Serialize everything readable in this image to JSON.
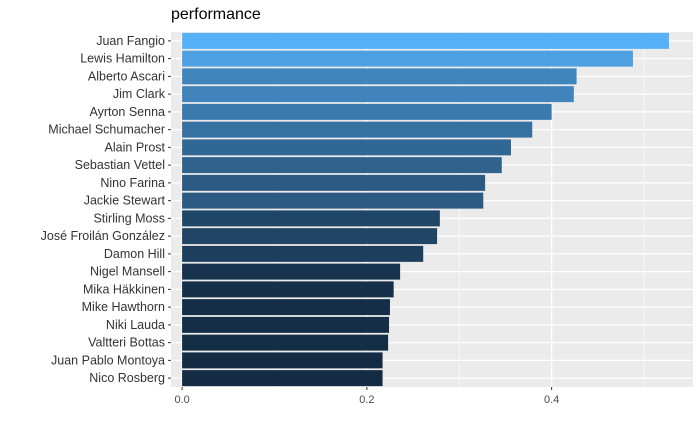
{
  "chart_data": {
    "type": "bar",
    "orientation": "horizontal",
    "title": "performance",
    "xlabel": "",
    "ylabel": "",
    "categories": [
      "Juan Fangio",
      "Lewis Hamilton",
      "Alberto Ascari",
      "Jim Clark",
      "Ayrton Senna",
      "Michael Schumacher",
      "Alain Prost",
      "Sebastian Vettel",
      "Nino Farina",
      "Jackie Stewart",
      "Stirling Moss",
      "José Froilán González",
      "Damon Hill",
      "Nigel Mansell",
      "Mika Häkkinen",
      "Mike Hawthorn",
      "Niki Lauda",
      "Valtteri Bottas",
      "Juan Pablo Montoya",
      "Nico Rosberg"
    ],
    "values": [
      0.527,
      0.488,
      0.427,
      0.424,
      0.4,
      0.379,
      0.356,
      0.346,
      0.328,
      0.326,
      0.279,
      0.276,
      0.261,
      0.236,
      0.229,
      0.225,
      0.224,
      0.223,
      0.217,
      0.217
    ],
    "xlim": [
      -0.012,
      0.553
    ],
    "xticks": [
      0.0,
      0.2,
      0.4
    ],
    "xtick_labels": [
      "0.0",
      "0.2",
      "0.4"
    ],
    "grid": true,
    "legend": "none",
    "fill_scale": {
      "low_color": "#132B43",
      "high_color": "#56B1F7",
      "mapped_to": "values"
    },
    "panel_background": "#EBEBEB",
    "grid_color": "#FFFFFF"
  }
}
